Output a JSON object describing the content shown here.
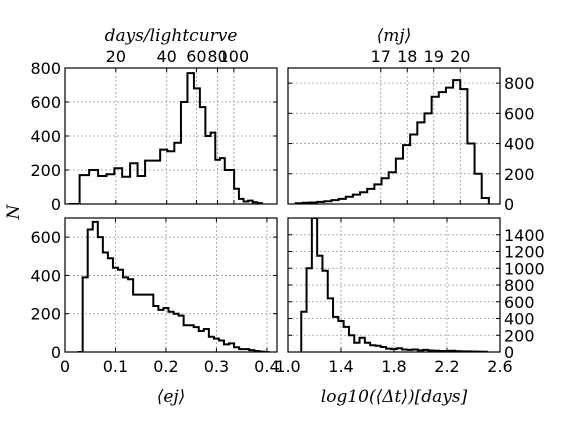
{
  "figure": {
    "shared_ylabel": "N"
  },
  "chart_data": [
    {
      "type": "bar",
      "panel": "top-left",
      "xlabel": "",
      "top_xlabel": "days/lightcurve",
      "ylabel": "N",
      "y_axis_side": "left",
      "x_axis_scale": "log",
      "xlim": [
        10,
        180
      ],
      "ylim": [
        0,
        800
      ],
      "y_ticks": [
        0,
        200,
        400,
        600,
        800
      ],
      "top_x_ticks": [
        "20",
        "40",
        "60",
        "80",
        "100"
      ],
      "grid": true,
      "bin_edges": [
        10.5,
        12.2,
        13.9,
        15.7,
        17.6,
        19.6,
        21.8,
        24.3,
        26.9,
        29.8,
        33.0,
        36.6,
        40.3,
        44.4,
        48.6,
        53.1,
        58.0,
        62.9,
        67.8,
        72.8,
        77.6,
        82.8,
        88.3,
        94.3,
        100.3,
        107.1,
        114.1,
        121.3,
        129.2,
        137.6,
        146.6
      ],
      "values": [
        0,
        170,
        200,
        165,
        175,
        210,
        160,
        240,
        165,
        255,
        255,
        320,
        310,
        360,
        600,
        770,
        680,
        570,
        400,
        420,
        260,
        270,
        200,
        200,
        90,
        30,
        15,
        20,
        10,
        5
      ]
    },
    {
      "type": "bar",
      "panel": "top-right",
      "xlabel": "",
      "top_xlabel": "⟨mj⟩",
      "ylabel": "",
      "y_axis_side": "right",
      "xlim": [
        13.5,
        21.5
      ],
      "ylim": [
        0,
        900
      ],
      "y_ticks": [
        0,
        200,
        400,
        600,
        800
      ],
      "top_x_ticks": [
        "17",
        "18",
        "19",
        "20"
      ],
      "grid": true,
      "bin_edges": [
        13.79,
        14.06,
        14.33,
        14.6,
        14.87,
        15.14,
        15.41,
        15.68,
        15.95,
        16.22,
        16.49,
        16.76,
        17.03,
        17.3,
        17.57,
        17.84,
        18.11,
        18.38,
        18.65,
        18.92,
        19.19,
        19.46,
        19.73,
        20.0,
        20.27,
        20.54,
        20.81,
        21.08
      ],
      "values": [
        5,
        8,
        10,
        14,
        18,
        26,
        34,
        48,
        62,
        78,
        100,
        130,
        170,
        210,
        300,
        390,
        460,
        540,
        600,
        710,
        740,
        770,
        820,
        760,
        400,
        200,
        40
      ]
    },
    {
      "type": "bar",
      "panel": "bottom-left",
      "xlabel": "⟨ej⟩",
      "ylabel": "",
      "y_axis_side": "left",
      "xlim": [
        0,
        0.42
      ],
      "ylim": [
        0,
        700
      ],
      "y_ticks": [
        0,
        200,
        400,
        600
      ],
      "x_ticks": [
        "0",
        "0.1",
        "0.2",
        "0.3",
        "0.4"
      ],
      "grid": true,
      "bin_edges": [
        0.025,
        0.035,
        0.045,
        0.055,
        0.065,
        0.075,
        0.085,
        0.095,
        0.105,
        0.115,
        0.125,
        0.135,
        0.145,
        0.155,
        0.165,
        0.175,
        0.185,
        0.195,
        0.205,
        0.215,
        0.225,
        0.235,
        0.245,
        0.255,
        0.265,
        0.275,
        0.285,
        0.295,
        0.305,
        0.315,
        0.325,
        0.335,
        0.345,
        0.355,
        0.365,
        0.375,
        0.385,
        0.395,
        0.405
      ],
      "values": [
        0,
        390,
        640,
        680,
        600,
        520,
        490,
        440,
        430,
        390,
        380,
        300,
        300,
        300,
        300,
        240,
        220,
        230,
        210,
        200,
        190,
        140,
        140,
        130,
        110,
        120,
        80,
        70,
        60,
        40,
        45,
        25,
        15,
        15,
        10,
        5,
        2,
        0
      ]
    },
    {
      "type": "bar",
      "panel": "bottom-right",
      "xlabel": "log10(⟨Δt⟩)[days]",
      "ylabel": "",
      "y_axis_side": "right",
      "xlim": [
        1.0,
        2.6
      ],
      "ylim": [
        0,
        1600
      ],
      "y_ticks": [
        0,
        200,
        400,
        600,
        800,
        1000,
        1200,
        1400
      ],
      "x_ticks": [
        "1.0",
        "1.4",
        "1.8",
        "2.2",
        "2.6"
      ],
      "grid": true,
      "bin_edges": [
        1.1,
        1.14,
        1.18,
        1.22,
        1.26,
        1.3,
        1.34,
        1.38,
        1.42,
        1.46,
        1.5,
        1.54,
        1.58,
        1.62,
        1.66,
        1.7,
        1.74,
        1.78,
        1.82,
        1.86,
        1.9,
        1.94,
        1.98,
        2.02,
        2.06,
        2.1,
        2.14,
        2.18,
        2.22,
        2.26,
        2.3,
        2.34,
        2.38,
        2.42,
        2.46,
        2.5
      ],
      "values": [
        480,
        1000,
        1600,
        1150,
        970,
        640,
        420,
        370,
        300,
        200,
        110,
        170,
        110,
        80,
        75,
        60,
        40,
        35,
        45,
        30,
        25,
        30,
        20,
        25,
        18,
        15,
        12,
        12,
        15,
        10,
        8,
        8,
        6,
        5,
        3
      ]
    }
  ]
}
